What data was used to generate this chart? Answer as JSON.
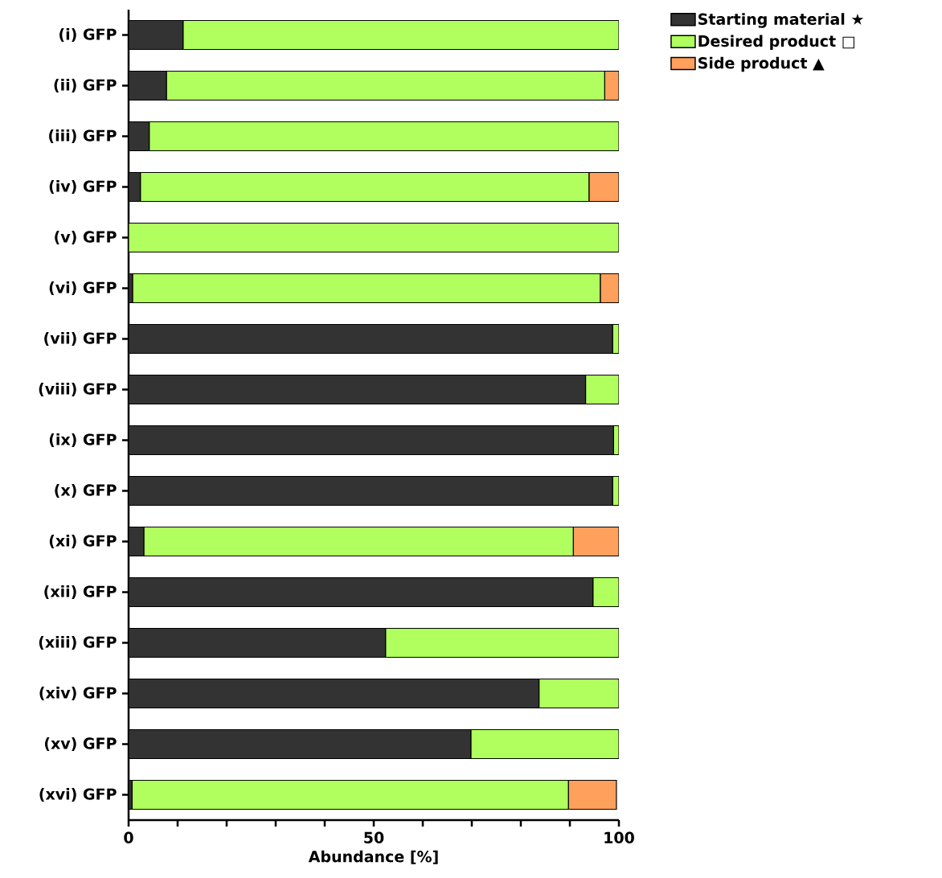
{
  "chart_data": {
    "type": "bar",
    "orientation": "horizontal",
    "stacked": true,
    "xlabel": "Abundance [%]",
    "categories": [
      "(i) GFP",
      "(ii) GFP",
      "(iii) GFP",
      "(iv) GFP",
      "(v) GFP",
      "(vi) GFP",
      "(vii) GFP",
      "(viii) GFP",
      "(ix) GFP",
      "(x) GFP",
      "(xi) GFP",
      "(xii) GFP",
      "(xiii) GFP",
      "(xiv) GFP",
      "(xv) GFP",
      "(xvi) GFP"
    ],
    "series": [
      {
        "name": "Starting material ★",
        "color": "#333333",
        "values": [
          11.1,
          7.7,
          4.2,
          2.4,
          0,
          0.8,
          98.7,
          93.2,
          98.9,
          98.7,
          3.1,
          94.7,
          52.4,
          83.7,
          69.8,
          0.7
        ]
      },
      {
        "name": "Desired product □",
        "color": "#b0ff5f",
        "values": [
          88.9,
          89.4,
          95.8,
          91.5,
          100,
          95.4,
          1.3,
          6.8,
          1.1,
          1.3,
          87.6,
          5.3,
          47.6,
          16.3,
          30.2,
          89.0
        ]
      },
      {
        "name": "Side product ▲",
        "color": "#ffa05c",
        "values": [
          0,
          2.9,
          0,
          6.1,
          0,
          3.8,
          0,
          0,
          0,
          0,
          9.3,
          0,
          0,
          0,
          0,
          9.8
        ]
      }
    ],
    "xlim": [
      0,
      100
    ],
    "xticks": [
      0,
      {
        "value": 10,
        "label": null
      },
      {
        "value": 20,
        "label": null
      },
      {
        "value": 30,
        "label": null
      },
      {
        "value": 40,
        "label": null
      },
      50,
      {
        "value": 60,
        "label": null
      },
      {
        "value": 70,
        "label": null
      },
      {
        "value": 80,
        "label": null
      },
      {
        "value": 90,
        "label": null
      },
      100
    ],
    "legend": "top right",
    "grid": false
  }
}
